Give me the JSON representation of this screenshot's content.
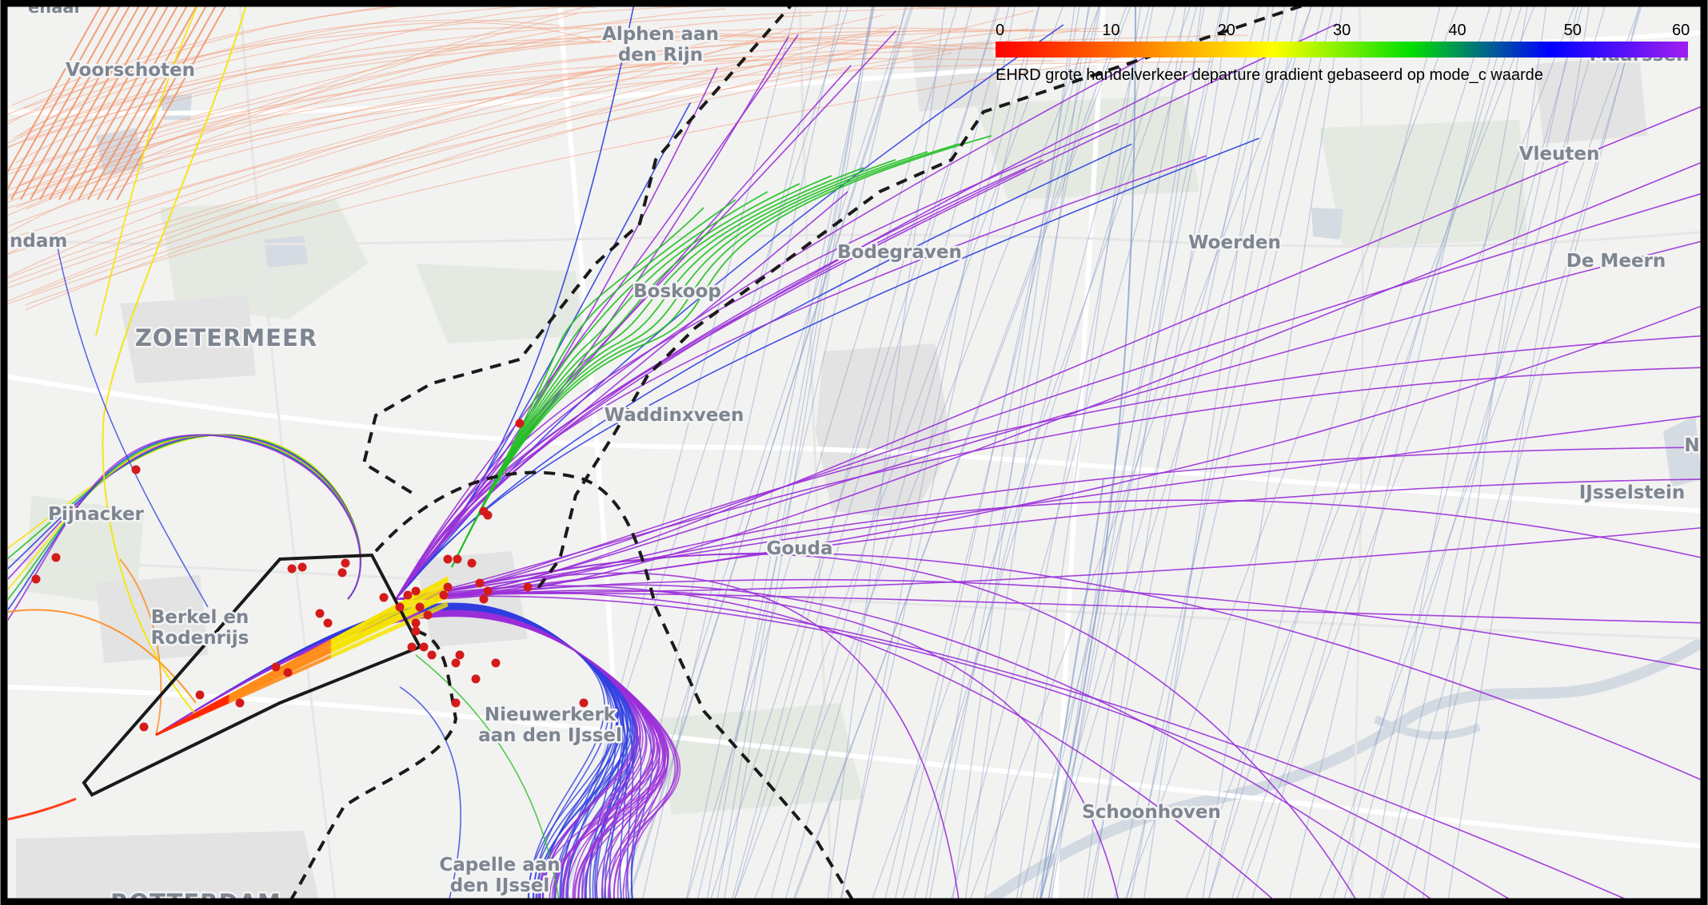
{
  "map": {
    "places": [
      {
        "id": "alphen",
        "lines": [
          "Alphen aan",
          "den Rijn"
        ],
        "size": "mid"
      },
      {
        "id": "voorschoten",
        "lines": [
          "Voorschoten"
        ],
        "size": "mid"
      },
      {
        "id": "maarssen",
        "lines": [
          "Maarssen"
        ],
        "size": "mid"
      },
      {
        "id": "vleuten",
        "lines": [
          "Vleuten"
        ],
        "size": "mid"
      },
      {
        "id": "leidschendam",
        "lines": [
          "ndam"
        ],
        "size": "mid"
      },
      {
        "id": "bodegraven",
        "lines": [
          "Bodegraven"
        ],
        "size": "mid"
      },
      {
        "id": "woerden",
        "lines": [
          "Woerden"
        ],
        "size": "mid"
      },
      {
        "id": "demeern",
        "lines": [
          "De Meern"
        ],
        "size": "mid"
      },
      {
        "id": "boskoop",
        "lines": [
          "Boskoop"
        ],
        "size": "mid"
      },
      {
        "id": "zoetermeer",
        "lines": [
          "ZOETERMEER"
        ],
        "size": "big"
      },
      {
        "id": "waddinxveen",
        "lines": [
          "Waddinxveen"
        ],
        "size": "mid"
      },
      {
        "id": "ni",
        "lines": [
          "Ni"
        ],
        "size": "mid"
      },
      {
        "id": "pijnacker",
        "lines": [
          "Pijnacker"
        ],
        "size": "mid"
      },
      {
        "id": "ijsselstein",
        "lines": [
          "IJsselstein"
        ],
        "size": "mid"
      },
      {
        "id": "gouda",
        "lines": [
          "Gouda"
        ],
        "size": "mid"
      },
      {
        "id": "berkel",
        "lines": [
          "Berkel en",
          "Rodenrijs"
        ],
        "size": "mid"
      },
      {
        "id": "nieuwerkerk",
        "lines": [
          "Nieuwerkerk",
          "aan den IJssel"
        ],
        "size": "mid"
      },
      {
        "id": "schoonhoven",
        "lines": [
          "Schoonhoven"
        ],
        "size": "mid"
      },
      {
        "id": "capelle",
        "lines": [
          "Capelle aan",
          "den IJssel"
        ],
        "size": "mid"
      },
      {
        "id": "rotterdam",
        "lines": [
          "ROTTERDAM"
        ],
        "size": "big"
      },
      {
        "id": "zenaar",
        "lines": [
          "enaar"
        ],
        "size": "small"
      }
    ]
  },
  "legend": {
    "ticks": [
      "0",
      "10",
      "20",
      "30",
      "40",
      "50",
      "60"
    ],
    "min": 0,
    "max": 60,
    "caption": "EHRD grote handelverkeer departure gradient gebaseerd op mode_c waarde",
    "gradient_colors": [
      "#ff0000",
      "#ff7a00",
      "#ffff00",
      "#00e000",
      "#0000ff",
      "#a020f0"
    ]
  },
  "colors": {
    "low": "#ff2a00",
    "orange": "#ff8c1a",
    "yellow": "#f5e400",
    "green": "#22c022",
    "blue": "#2f3fe0",
    "purple": "#9a2fd8",
    "steel": "#7f93c0",
    "salmon": "#f3a07f",
    "marker": "#d41b1b",
    "boundary": "#1a1a1a"
  }
}
